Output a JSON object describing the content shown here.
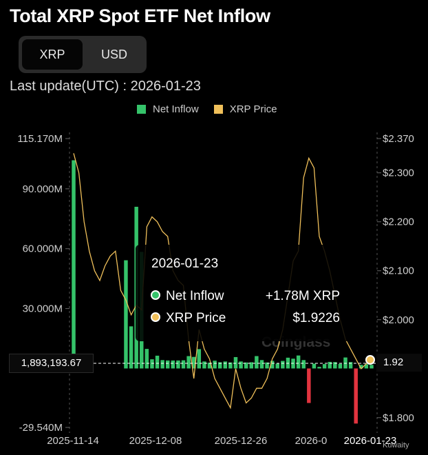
{
  "title": "Total XRP Spot ETF Net Inflow",
  "tabs": [
    {
      "label": "XRP"
    },
    {
      "label": "USD"
    }
  ],
  "last_update": "Last update(UTC) : 2026-01-23",
  "legend": [
    {
      "label": "Net Inflow",
      "color": "#35c36a"
    },
    {
      "label": "XRP Price",
      "color": "#f0c05a"
    }
  ],
  "tooltip": {
    "date": "2026-01-23",
    "rows": [
      {
        "label": "Net Inflow",
        "value": "+1.78M XRP",
        "dot": "#35c36a"
      },
      {
        "label": "XRP Price",
        "value": "$1.9226",
        "dot": "#f0c05a"
      }
    ]
  },
  "crosshair": {
    "left_label": "1,893,193.67",
    "right_label": "1.92"
  },
  "watermark": "Coinglass",
  "credit": "Kuwaity",
  "colors": {
    "positive": "#35c36a",
    "negative": "#e2343f",
    "price": "#f0c05a"
  },
  "chart_data": {
    "type": "bar",
    "title": "Total XRP Spot ETF Net Inflow",
    "y_left_ticks": [
      "115.170M",
      "90.000M",
      "60.000M",
      "30.000M",
      "-29.540M"
    ],
    "y_left_tick_values": [
      115.17,
      90,
      60,
      30,
      -29.54
    ],
    "y_right_ticks": [
      "$2.370",
      "$2.300",
      "$2.200",
      "$2.100",
      "$2.000",
      "$1.800"
    ],
    "y_right_tick_values": [
      2.37,
      2.3,
      2.2,
      2.1,
      2.0,
      1.8
    ],
    "x_ticks": [
      "2025-11-14",
      "2025-12-08",
      "2025-12-26",
      "2026-0",
      "2026-01-23"
    ],
    "ylim_left": [
      -29.54,
      115.17
    ],
    "ylim_right": [
      1.78,
      2.37
    ],
    "series": [
      {
        "name": "Net Inflow",
        "unit": "M XRP",
        "values": [
          104.3,
          4.8,
          0,
          0,
          0,
          0,
          0,
          0,
          0,
          0,
          54.2,
          21.1,
          81.0,
          58.4,
          9.8,
          4.6,
          6.4,
          4.2,
          4.0,
          4.0,
          4.0,
          4.1,
          6.2,
          5.8,
          9.7,
          3.5,
          2.9,
          3.9,
          3.1,
          3.5,
          3.0,
          5.7,
          3.5,
          3.0,
          3.1,
          6.2,
          4.2,
          3.0,
          3.8,
          2.4,
          3.8,
          5.4,
          4.9,
          6.5,
          4.2,
          -17.3,
          2.4,
          0.8,
          2.2,
          3.3,
          3.2,
          2.3,
          5.5,
          3.2,
          -27.6,
          1.8,
          2.1,
          1.8
        ]
      },
      {
        "name": "XRP Price",
        "unit": "USD",
        "values": [
          2.34,
          2.3,
          2.2,
          2.14,
          2.1,
          2.08,
          2.11,
          2.13,
          2.14,
          2.06,
          2.04,
          2.01,
          2.03,
          2.02,
          2.19,
          2.21,
          2.2,
          2.18,
          2.17,
          2.1,
          2.08,
          2.07,
          1.96,
          1.88,
          1.98,
          1.94,
          1.92,
          1.88,
          1.86,
          1.84,
          1.82,
          1.9,
          1.86,
          1.83,
          1.84,
          1.86,
          1.86,
          1.88,
          1.92,
          1.94,
          1.98,
          2.05,
          2.12,
          2.14,
          2.29,
          2.33,
          2.31,
          2.17,
          2.14,
          2.1,
          2.05,
          2.0,
          1.96,
          1.94,
          1.92,
          1.9,
          1.91,
          1.92
        ]
      }
    ]
  }
}
